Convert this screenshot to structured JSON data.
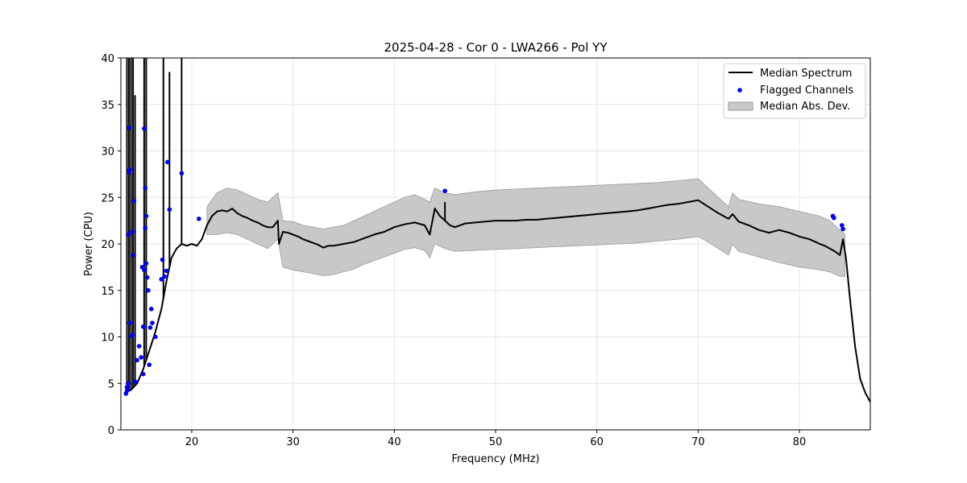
{
  "chart_data": {
    "type": "line",
    "title": "2025-04-28 - Cor 0 - LWA266 - Pol YY",
    "xlabel": "Frequency (MHz)",
    "ylabel": "Power (CPU)",
    "xlim": [
      13,
      87
    ],
    "ylim": [
      0,
      40
    ],
    "x_ticks": [
      20,
      30,
      40,
      50,
      60,
      70,
      80
    ],
    "y_ticks": [
      0,
      5,
      10,
      15,
      20,
      25,
      30,
      35,
      40
    ],
    "grid": true,
    "legend_location": "top-right",
    "legend": {
      "median_label": "Median Spectrum",
      "flagged_label": "Flagged Channels",
      "mad_label": "Median Abs. Dev."
    },
    "colors": {
      "median": "#000000",
      "flagged": "#0000ff",
      "mad_fill": "#c8c8c8",
      "mad_edge": "#9a9a9a",
      "grid": "#e6e6e6"
    },
    "series": [
      {
        "name": "Median Spectrum",
        "x": [
          13.4,
          14.0,
          14.6,
          15.2,
          15.8,
          16.4,
          17.0,
          17.5,
          18.0,
          18.5,
          19.0,
          19.5,
          20.0,
          20.5,
          21.0,
          21.5,
          22.0,
          22.5,
          23.0,
          23.5,
          24.0,
          24.5,
          25.0,
          25.5,
          26.0,
          26.5,
          27.0,
          27.5,
          28.0,
          28.5,
          28.6,
          29.0,
          29.5,
          30.0,
          30.5,
          31.0,
          31.5,
          32.0,
          32.5,
          33.0,
          33.5,
          34.0,
          35.0,
          36.0,
          37.0,
          38.0,
          39.0,
          40.0,
          41.0,
          42.0,
          43.0,
          43.5,
          44.0,
          44.5,
          45.0,
          45.5,
          46.0,
          47.0,
          48.0,
          49.0,
          50.0,
          51.0,
          52.0,
          53.0,
          54.0,
          55.0,
          56.0,
          57.0,
          58.0,
          59.0,
          60.0,
          61.0,
          62.0,
          63.0,
          64.0,
          65.0,
          66.0,
          67.0,
          68.0,
          69.0,
          70.0,
          71.0,
          72.0,
          73.0,
          73.4,
          74.0,
          75.0,
          76.0,
          77.0,
          78.0,
          79.0,
          80.0,
          81.0,
          82.0,
          82.5,
          83.0,
          83.5,
          84.0,
          84.3,
          84.6,
          85.0,
          85.5,
          86.0,
          86.5,
          87.0
        ],
        "values": [
          4.0,
          4.3,
          5.0,
          6.5,
          8.5,
          10.5,
          13.0,
          16.0,
          18.5,
          19.5,
          20.0,
          19.8,
          20.0,
          19.8,
          20.5,
          22.0,
          23.0,
          23.5,
          23.6,
          23.5,
          23.8,
          23.3,
          23.0,
          22.8,
          22.5,
          22.3,
          22.0,
          21.8,
          21.8,
          22.5,
          20.0,
          21.3,
          21.2,
          21.0,
          20.8,
          20.5,
          20.3,
          20.1,
          19.9,
          19.6,
          19.8,
          19.8,
          20.0,
          20.2,
          20.6,
          21.0,
          21.3,
          21.8,
          22.1,
          22.3,
          22.0,
          21.0,
          23.8,
          23.0,
          22.5,
          22.0,
          21.8,
          22.2,
          22.3,
          22.4,
          22.5,
          22.5,
          22.5,
          22.6,
          22.6,
          22.7,
          22.8,
          22.9,
          23.0,
          23.1,
          23.2,
          23.3,
          23.4,
          23.5,
          23.6,
          23.8,
          24.0,
          24.2,
          24.3,
          24.5,
          24.7,
          24.0,
          23.3,
          22.7,
          23.2,
          22.4,
          22.0,
          21.5,
          21.2,
          21.5,
          21.2,
          20.8,
          20.5,
          20.0,
          19.8,
          19.5,
          19.2,
          18.8,
          20.5,
          18.5,
          14.0,
          9.0,
          5.5,
          4.0,
          3.0
        ]
      }
    ],
    "mad_band": {
      "x": [
        21.5,
        22.5,
        23.5,
        24.5,
        25.5,
        26.5,
        27.5,
        28.5,
        29.0,
        30.0,
        31.0,
        32.0,
        33.0,
        34.0,
        35.0,
        36.0,
        37.0,
        38.0,
        39.0,
        40.0,
        41.0,
        42.0,
        43.0,
        43.5,
        44.0,
        45.0,
        46.0,
        48.0,
        50.0,
        52.0,
        54.0,
        56.0,
        58.0,
        60.0,
        62.0,
        64.0,
        66.0,
        68.0,
        70.0,
        71.0,
        72.0,
        73.0,
        73.4,
        74.0,
        76.0,
        78.0,
        80.0,
        82.0,
        83.0,
        84.0,
        84.5
      ],
      "upper": [
        24.0,
        25.5,
        26.0,
        25.8,
        25.3,
        24.8,
        24.5,
        25.5,
        22.5,
        22.4,
        22.0,
        21.8,
        21.6,
        21.8,
        22.0,
        22.5,
        23.0,
        23.5,
        24.0,
        24.5,
        25.0,
        25.3,
        24.8,
        24.5,
        26.0,
        25.5,
        25.3,
        25.6,
        25.8,
        25.9,
        26.0,
        26.1,
        26.2,
        26.3,
        26.4,
        26.5,
        26.6,
        26.8,
        27.0,
        26.0,
        25.0,
        24.0,
        25.5,
        24.8,
        24.3,
        24.0,
        23.5,
        23.0,
        22.5,
        21.5,
        21.0
      ],
      "lower": [
        21.0,
        21.0,
        21.2,
        21.0,
        20.5,
        20.0,
        19.5,
        20.5,
        17.5,
        17.2,
        17.0,
        16.8,
        16.6,
        16.7,
        17.0,
        17.3,
        17.8,
        18.2,
        18.6,
        19.0,
        19.4,
        19.6,
        19.3,
        18.5,
        20.0,
        19.5,
        19.2,
        19.3,
        19.4,
        19.5,
        19.6,
        19.7,
        19.8,
        19.9,
        20.0,
        20.1,
        20.3,
        20.5,
        20.8,
        20.2,
        19.5,
        18.8,
        20.0,
        19.2,
        18.6,
        18.0,
        17.5,
        17.2,
        17.0,
        16.5,
        16.5
      ]
    },
    "spikes": [
      {
        "x": 13.6,
        "top": 40
      },
      {
        "x": 13.8,
        "top": 40
      },
      {
        "x": 14.0,
        "top": 40
      },
      {
        "x": 14.2,
        "top": 40
      },
      {
        "x": 14.4,
        "top": 36
      },
      {
        "x": 15.3,
        "top": 40
      },
      {
        "x": 15.5,
        "top": 40
      },
      {
        "x": 17.2,
        "top": 40
      },
      {
        "x": 17.8,
        "top": 38.5
      },
      {
        "x": 19.0,
        "top": 40
      },
      {
        "x": 45.0,
        "top": 24.5
      }
    ],
    "flagged_channels": {
      "x": [
        13.5,
        13.6,
        13.6,
        13.7,
        13.7,
        13.8,
        13.8,
        13.9,
        13.9,
        14.0,
        14.1,
        14.1,
        14.2,
        14.3,
        14.4,
        14.6,
        14.8,
        15.0,
        15.1,
        15.2,
        15.2,
        15.3,
        15.3,
        15.4,
        15.4,
        15.5,
        15.5,
        15.6,
        15.7,
        15.8,
        15.9,
        16.0,
        16.1,
        16.4,
        17.0,
        17.1,
        17.3,
        17.5,
        17.6,
        17.8,
        19.0,
        20.7,
        45.0,
        83.3,
        83.4,
        84.2,
        84.3
      ],
      "values": [
        3.9,
        4.2,
        4.6,
        5.0,
        21.0,
        32.5,
        27.7,
        28.0,
        11.5,
        10.1,
        21.3,
        10.2,
        18.8,
        24.6,
        5.2,
        7.5,
        9.0,
        7.8,
        17.5,
        6.0,
        11.1,
        17.2,
        32.4,
        26.0,
        21.7,
        23.0,
        17.9,
        16.4,
        15.0,
        7.0,
        11.0,
        13.0,
        11.5,
        10.0,
        16.2,
        18.3,
        16.5,
        17.1,
        28.8,
        23.7,
        27.6,
        22.7,
        25.7,
        23.0,
        22.8,
        22.0,
        21.6
      ]
    }
  }
}
